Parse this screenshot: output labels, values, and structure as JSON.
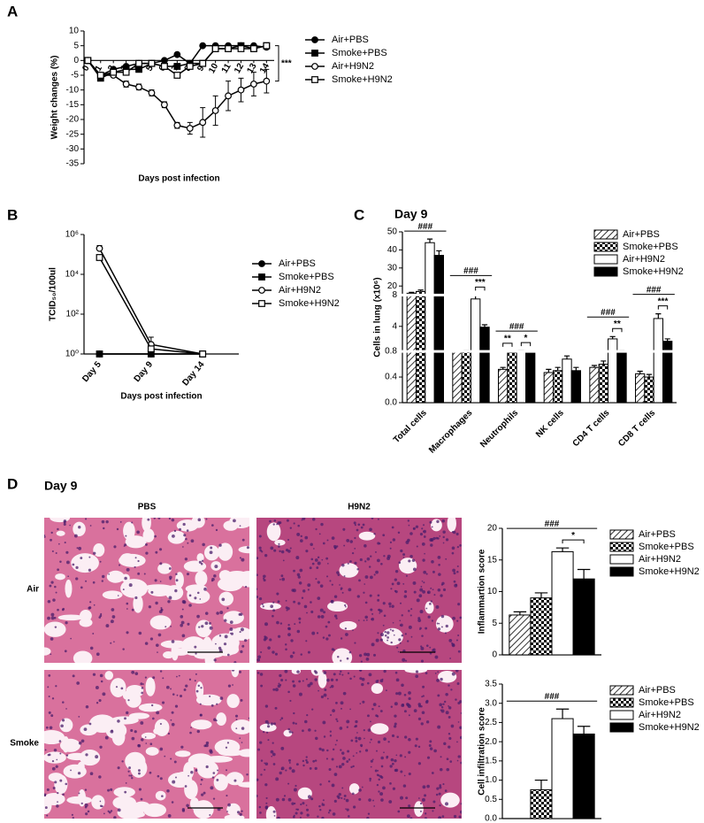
{
  "chart_data": [
    {
      "type": "line",
      "panel": "A",
      "xlabel": "Days post infection",
      "ylabel": "Weight changes (%)",
      "x": [
        0,
        1,
        2,
        3,
        4,
        5,
        6,
        7,
        8,
        9,
        10,
        11,
        12,
        13,
        14
      ],
      "xlim": [
        -0.3,
        14.6
      ],
      "xticks": [
        0,
        1,
        2,
        3,
        4,
        5,
        6,
        7,
        8,
        9,
        10,
        11,
        12,
        13,
        14
      ],
      "ylim": [
        -35,
        10
      ],
      "yticks": [
        -35,
        -30,
        -25,
        -20,
        -15,
        -10,
        -5,
        0,
        5,
        10
      ],
      "series": [
        {
          "name": "Air+PBS",
          "marker": "filled-circle",
          "values": [
            0,
            -5,
            -3,
            -2,
            -1,
            -1,
            0,
            2,
            -1,
            5,
            5,
            5,
            5,
            5,
            4.5
          ]
        },
        {
          "name": "Smoke+PBS",
          "marker": "filled-square",
          "values": [
            0,
            -6,
            -4,
            -3,
            -3,
            -1,
            -2,
            -2,
            -1,
            -1,
            4,
            4,
            5,
            4,
            5
          ]
        },
        {
          "name": "Air+H9N2",
          "marker": "open-circle",
          "values": [
            0,
            -5,
            -5,
            -8,
            -9,
            -11,
            -15,
            -22,
            -23,
            -21,
            -17,
            -12,
            -10,
            -8,
            -7
          ],
          "errors": [
            0,
            0,
            0,
            1,
            1,
            1,
            1,
            1,
            2,
            5,
            5,
            5,
            4,
            4,
            4
          ]
        },
        {
          "name": "Smoke+H9N2",
          "marker": "open-square",
          "values": [
            0,
            -5,
            -4,
            -4,
            -1,
            -1,
            -2,
            -5,
            -2,
            -1,
            4,
            4,
            4,
            4,
            5
          ]
        }
      ],
      "annotations": [
        {
          "text": "***"
        }
      ]
    },
    {
      "type": "line",
      "panel": "B",
      "xlabel": "Days post infection",
      "ylabel": "TCID₅₀/100ul",
      "categories": [
        "Day 5",
        "Day 9",
        "Day 14"
      ],
      "log": true,
      "ylim": [
        1,
        1000000
      ],
      "yticks": [
        {
          "value": 1,
          "label": "10⁰"
        },
        {
          "value": 100,
          "label": "10²"
        },
        {
          "value": 10000,
          "label": "10⁴"
        },
        {
          "value": 1000000,
          "label": "10⁶"
        }
      ],
      "series": [
        {
          "name": "Air+PBS",
          "marker": "filled-circle",
          "values": [
            1,
            1,
            1
          ]
        },
        {
          "name": "Smoke+PBS",
          "marker": "filled-square",
          "values": [
            1,
            1,
            1
          ]
        },
        {
          "name": "Air+H9N2",
          "marker": "open-circle",
          "values": [
            200000,
            3,
            1
          ],
          "errors": [
            80000,
            4,
            0
          ]
        },
        {
          "name": "Smoke+H9N2",
          "marker": "open-square",
          "values": [
            70000,
            1.8,
            1
          ]
        }
      ]
    },
    {
      "type": "bar",
      "panel": "C",
      "title": "Day 9",
      "ylabel": "Cells in lung (x10⁶)",
      "categories": [
        "Total cells",
        "Macrophages",
        "Neutrophils",
        "NK cells",
        "CD4 T cells",
        "CD8 T cells"
      ],
      "ylim": [
        0,
        50
      ],
      "segments": [
        [
          0,
          0.8
        ],
        [
          0.8,
          8
        ],
        [
          15,
          50
        ]
      ],
      "yticks": [
        {
          "value": 0,
          "label": "0.0"
        },
        0.4,
        0.8,
        4,
        8,
        20,
        30,
        40,
        50
      ],
      "series": [
        {
          "name": "Air+PBS",
          "pattern": "hatch",
          "values": [
            16,
            0.8,
            0.52,
            0.47,
            0.55,
            0.45
          ],
          "errors": [
            0.5,
            0.02,
            0.03,
            0.05,
            0.03,
            0.04
          ]
        },
        {
          "name": "Smoke+PBS",
          "pattern": "check",
          "values": [
            17,
            0.85,
            0.78,
            0.5,
            0.6,
            0.4
          ],
          "errors": [
            0.8,
            0.05,
            0.05,
            0.05,
            0.05,
            0.04
          ]
        },
        {
          "name": "Air+H9N2",
          "pattern": "white",
          "values": [
            44,
            7.5,
            0.88,
            0.68,
            2.4,
            5
          ],
          "errors": [
            2,
            0.8,
            0.03,
            0.05,
            0.3,
            0.6
          ]
        },
        {
          "name": "Smoke+H9N2",
          "pattern": "black",
          "values": [
            37,
            3.9,
            0.8,
            0.5,
            0.85,
            2.1
          ],
          "errors": [
            2.5,
            0.3,
            0.03,
            0.05,
            0.05,
            0.3
          ]
        }
      ],
      "annotations": [
        {
          "text": "###",
          "category": 0,
          "bars": [
            0,
            3
          ]
        },
        {
          "text": "***",
          "category": 1,
          "bars": [
            2,
            3
          ]
        },
        {
          "text": "###",
          "category": 1,
          "bars": [
            0,
            3
          ]
        },
        {
          "text": "**",
          "category": 2,
          "bars": [
            0,
            1
          ]
        },
        {
          "text": "*",
          "category": 2,
          "bars": [
            2,
            3
          ]
        },
        {
          "text": "###",
          "category": 2,
          "bars": [
            0,
            3
          ]
        },
        {
          "text": "**",
          "category": 4,
          "bars": [
            2,
            3
          ]
        },
        {
          "text": "###",
          "category": 4,
          "bars": [
            0,
            3
          ]
        },
        {
          "text": "***",
          "category": 5,
          "bars": [
            2,
            3
          ]
        },
        {
          "text": "###",
          "category": 5,
          "bars": [
            0,
            3
          ]
        }
      ]
    },
    {
      "type": "bar",
      "ylabel": "Inflammartion score",
      "ylim": [
        0,
        20
      ],
      "yticks": [
        0,
        5,
        10,
        15,
        20
      ],
      "series": [
        {
          "name": "Air+PBS",
          "pattern": "hatch",
          "values": [
            6.3
          ],
          "errors": [
            0.5
          ]
        },
        {
          "name": "Smoke+PBS",
          "pattern": "check",
          "values": [
            9
          ],
          "errors": [
            0.8
          ]
        },
        {
          "name": "Air+H9N2",
          "pattern": "white",
          "values": [
            16.3
          ],
          "errors": [
            0.6
          ]
        },
        {
          "name": "Smoke+H9N2",
          "pattern": "black",
          "values": [
            12
          ],
          "errors": [
            1.5
          ]
        }
      ],
      "annotations": [
        {
          "text": "*",
          "category": 0,
          "bars": [
            2,
            3
          ]
        },
        {
          "text": "###",
          "category": 0,
          "bars": [
            0,
            3
          ]
        }
      ]
    },
    {
      "type": "bar",
      "ylabel": "Cell infiltration score",
      "ylim": [
        0,
        3.5
      ],
      "yticks": [
        {
          "value": 0,
          "label": "0.0"
        },
        0.5,
        {
          "value": 1,
          "label": "1.0"
        },
        1.5,
        {
          "value": 2,
          "label": "2.0"
        },
        2.5,
        {
          "value": 3,
          "label": "3.0"
        },
        3.5
      ],
      "series": [
        {
          "name": "Air+PBS",
          "pattern": "hatch",
          "values": [
            0
          ],
          "errors": [
            0
          ]
        },
        {
          "name": "Smoke+PBS",
          "pattern": "check",
          "values": [
            0.75
          ],
          "errors": [
            0.25
          ]
        },
        {
          "name": "Air+H9N2",
          "pattern": "white",
          "values": [
            2.6
          ],
          "errors": [
            0.25
          ]
        },
        {
          "name": "Smoke+H9N2",
          "pattern": "black",
          "values": [
            2.2
          ],
          "errors": [
            0.2
          ]
        }
      ],
      "annotations": [
        {
          "text": "###",
          "category": 0,
          "bars": [
            0,
            3
          ]
        }
      ]
    }
  ],
  "histology": {
    "panel": "D",
    "title": "Day 9",
    "columns": [
      "PBS",
      "H9N2"
    ],
    "rows": [
      "Air",
      "Smoke"
    ]
  }
}
